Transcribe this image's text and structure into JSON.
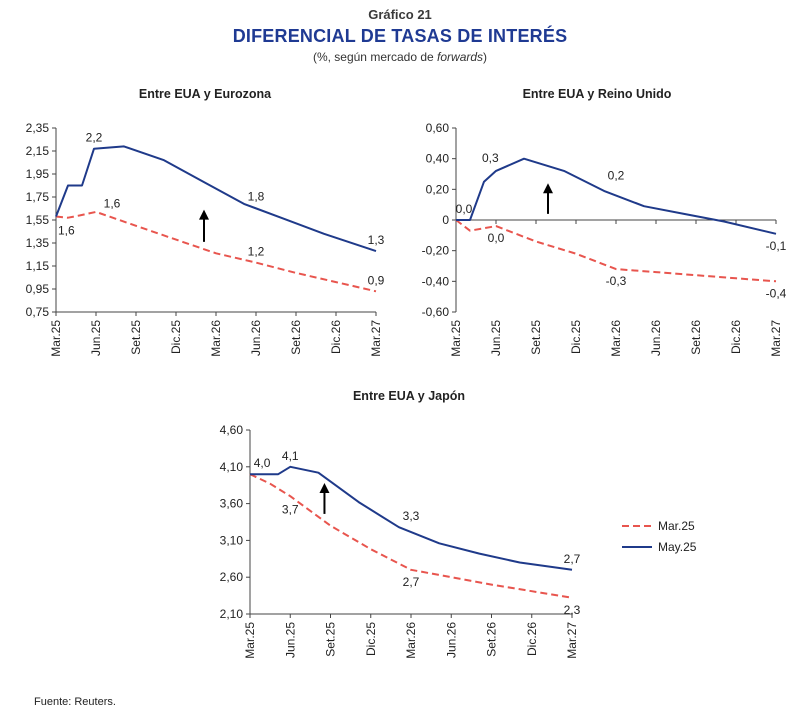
{
  "header": {
    "label": "Gráfico 21",
    "title": "DIFERENCIAL DE TASAS DE INTERÉS",
    "subtitle_pre": "(%, según mercado de ",
    "subtitle_em": "forwards",
    "subtitle_post": ")"
  },
  "source": "Fuente: Reuters.",
  "legend": {
    "items": [
      "Mar.25",
      "May.25"
    ]
  },
  "colors": {
    "Mar.25": "#e8554e",
    "May.25": "#1f3a8a",
    "arrow": "#000000"
  },
  "chart_data": [
    {
      "type": "line",
      "title": "Entre EUA y Eurozona",
      "categories": [
        "Mar.25",
        "Jun.25",
        "Set.25",
        "Dic.25",
        "Mar.26",
        "Jun.26",
        "Set.26",
        "Dic.26",
        "Mar.27"
      ],
      "yticks": [
        "2,35",
        "2,15",
        "1,95",
        "1,75",
        "1,55",
        "1,35",
        "1,15",
        "0,95",
        "0,75"
      ],
      "ylim": [
        0.75,
        2.35
      ],
      "series": [
        {
          "name": "Mar.25",
          "dash": true,
          "points": [
            [
              0,
              1.58
            ],
            [
              0.3,
              1.57
            ],
            [
              0.6,
              1.59
            ],
            [
              1,
              1.62
            ],
            [
              2,
              1.5
            ],
            [
              3,
              1.38
            ],
            [
              4,
              1.26
            ],
            [
              5,
              1.18
            ],
            [
              6,
              1.09
            ],
            [
              7,
              1.01
            ],
            [
              8,
              0.93
            ]
          ]
        },
        {
          "name": "May.25",
          "dash": false,
          "points": [
            [
              0,
              1.58
            ],
            [
              0.3,
              1.85
            ],
            [
              0.65,
              1.85
            ],
            [
              0.95,
              2.17
            ],
            [
              1.7,
              2.19
            ],
            [
              2.7,
              2.07
            ],
            [
              3.7,
              1.88
            ],
            [
              4.7,
              1.69
            ],
            [
              5.7,
              1.56
            ],
            [
              6.7,
              1.43
            ],
            [
              8,
              1.28
            ]
          ]
        }
      ],
      "data_labels": [
        {
          "text": "2,2",
          "x": 0.95,
          "y": 2.17,
          "pos": "above"
        },
        {
          "text": "1,6",
          "x": 0,
          "y": 1.58,
          "pos": "below-right"
        },
        {
          "text": "1,6",
          "x": 1.4,
          "y": 1.6,
          "pos": "above"
        },
        {
          "text": "1,8",
          "x": 5,
          "y": 1.66,
          "pos": "above"
        },
        {
          "text": "1,2",
          "x": 5,
          "y": 1.18,
          "pos": "above"
        },
        {
          "text": "1,3",
          "x": 8,
          "y": 1.28,
          "pos": "above"
        },
        {
          "text": "0,9",
          "x": 8,
          "y": 0.93,
          "pos": "above"
        }
      ],
      "arrow": {
        "x": 3.7,
        "y_from": 1.36,
        "y_to": 1.64
      }
    },
    {
      "type": "line",
      "title": "Entre EUA y Reino Unido",
      "categories": [
        "Mar.25",
        "Jun.25",
        "Set.25",
        "Dic.25",
        "Mar.26",
        "Jun.26",
        "Set.26",
        "Dic.26",
        "Mar.27"
      ],
      "yticks": [
        "0,60",
        "0,40",
        "0,20",
        "0",
        "-0,20",
        "-0,40",
        "-0,60"
      ],
      "ylim": [
        -0.6,
        0.6
      ],
      "series": [
        {
          "name": "Mar.25",
          "dash": true,
          "points": [
            [
              0,
              0.0
            ],
            [
              0.35,
              -0.07
            ],
            [
              1,
              -0.04
            ],
            [
              2,
              -0.14
            ],
            [
              3,
              -0.22
            ],
            [
              4,
              -0.32
            ],
            [
              5,
              -0.34
            ],
            [
              6,
              -0.36
            ],
            [
              7,
              -0.38
            ],
            [
              8,
              -0.4
            ]
          ]
        },
        {
          "name": "May.25",
          "dash": false,
          "points": [
            [
              0,
              0.0
            ],
            [
              0.35,
              0.0
            ],
            [
              0.7,
              0.25
            ],
            [
              1,
              0.32
            ],
            [
              1.7,
              0.4
            ],
            [
              2.7,
              0.32
            ],
            [
              3.7,
              0.19
            ],
            [
              4.7,
              0.09
            ],
            [
              5.7,
              0.04
            ],
            [
              6.7,
              -0.01
            ],
            [
              8,
              -0.09
            ]
          ]
        }
      ],
      "data_labels": [
        {
          "text": "0,0",
          "x": 0.2,
          "y": 0.0,
          "pos": "above"
        },
        {
          "text": "0,3",
          "x": 0.7,
          "y": 0.32,
          "pos": "above-left"
        },
        {
          "text": "0,0",
          "x": 1,
          "y": -0.04,
          "pos": "below"
        },
        {
          "text": "0,2",
          "x": 4,
          "y": 0.22,
          "pos": "above"
        },
        {
          "text": "-0,3",
          "x": 4,
          "y": -0.32,
          "pos": "below"
        },
        {
          "text": "-0,1",
          "x": 8,
          "y": -0.09,
          "pos": "below"
        },
        {
          "text": "-0,4",
          "x": 8,
          "y": -0.4,
          "pos": "below"
        }
      ],
      "arrow": {
        "x": 2.3,
        "y_from": 0.04,
        "y_to": 0.24
      }
    },
    {
      "type": "line",
      "title": "Entre EUA y Japón",
      "categories": [
        "Mar.25",
        "Jun.25",
        "Set.25",
        "Dic.25",
        "Mar.26",
        "Jun.26",
        "Set.26",
        "Dic.26",
        "Mar.27"
      ],
      "yticks": [
        "4,60",
        "4,10",
        "3,60",
        "3,10",
        "2,60",
        "2,10"
      ],
      "ylim": [
        2.1,
        4.6
      ],
      "series": [
        {
          "name": "Mar.25",
          "dash": true,
          "points": [
            [
              0,
              4.0
            ],
            [
              0.5,
              3.87
            ],
            [
              1,
              3.7
            ],
            [
              2,
              3.3
            ],
            [
              3,
              2.98
            ],
            [
              4,
              2.7
            ],
            [
              5,
              2.6
            ],
            [
              6,
              2.5
            ],
            [
              7,
              2.41
            ],
            [
              8,
              2.32
            ]
          ]
        },
        {
          "name": "May.25",
          "dash": false,
          "points": [
            [
              0,
              4.0
            ],
            [
              0.7,
              4.0
            ],
            [
              1,
              4.1
            ],
            [
              1.7,
              4.02
            ],
            [
              2.7,
              3.62
            ],
            [
              3.7,
              3.28
            ],
            [
              4.7,
              3.06
            ],
            [
              5.7,
              2.92
            ],
            [
              6.7,
              2.8
            ],
            [
              8,
              2.7
            ]
          ]
        }
      ],
      "data_labels": [
        {
          "text": "4,0",
          "x": 0.3,
          "y": 4.0,
          "pos": "above"
        },
        {
          "text": "4,1",
          "x": 1,
          "y": 4.1,
          "pos": "above"
        },
        {
          "text": "3,7",
          "x": 1,
          "y": 3.68,
          "pos": "below"
        },
        {
          "text": "3,3",
          "x": 4,
          "y": 3.28,
          "pos": "above"
        },
        {
          "text": "2,7",
          "x": 4,
          "y": 2.7,
          "pos": "below"
        },
        {
          "text": "2,7",
          "x": 8,
          "y": 2.7,
          "pos": "above"
        },
        {
          "text": "2,3",
          "x": 8,
          "y": 2.32,
          "pos": "below"
        }
      ],
      "arrow": {
        "x": 1.85,
        "y_from": 3.46,
        "y_to": 3.88
      }
    }
  ]
}
